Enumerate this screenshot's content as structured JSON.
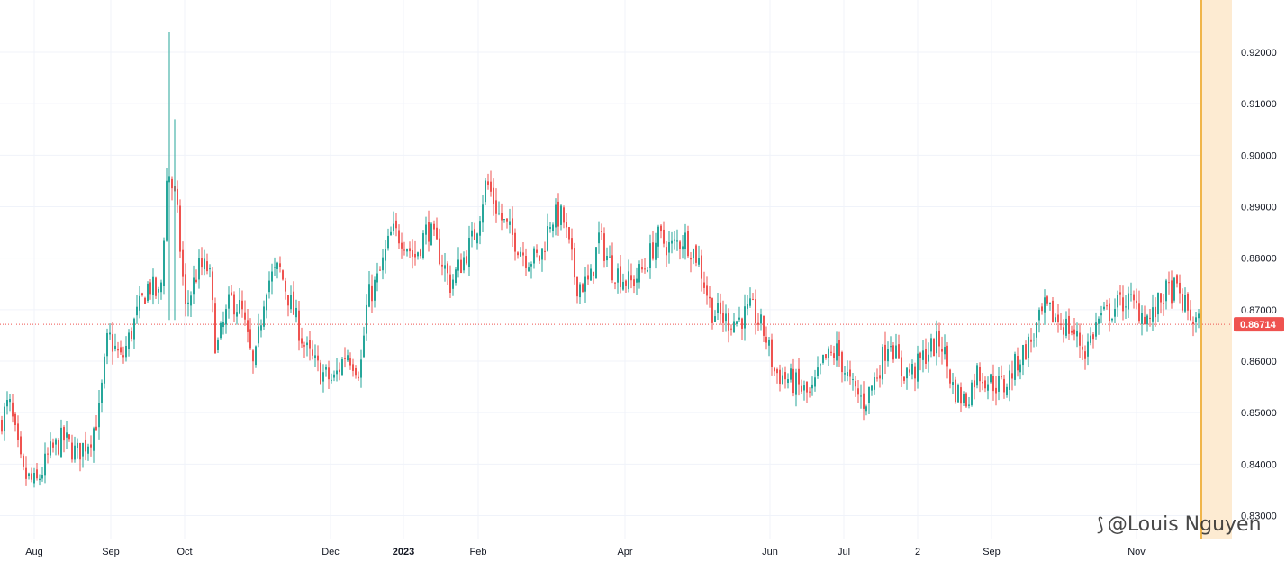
{
  "chart_data": {
    "type": "candlestick",
    "y_range": [
      0.8265,
      0.93
    ],
    "y_ticks": [
      "0.83000",
      "0.84000",
      "0.85000",
      "0.86000",
      "0.87000",
      "0.88000",
      "0.89000",
      "0.90000",
      "0.91000",
      "0.92000"
    ],
    "x_tick_labels": [
      {
        "label": "Aug",
        "bold": false
      },
      {
        "label": "Sep",
        "bold": false
      },
      {
        "label": "Oct",
        "bold": false
      },
      {
        "label": "Dec",
        "bold": false
      },
      {
        "label": "2023",
        "bold": true
      },
      {
        "label": "Feb",
        "bold": false
      },
      {
        "label": "Apr",
        "bold": false
      },
      {
        "label": "Jun",
        "bold": false
      },
      {
        "label": "Jul",
        "bold": false
      },
      {
        "label": "2",
        "bold": false
      },
      {
        "label": "Sep",
        "bold": false
      },
      {
        "label": "Nov",
        "bold": false
      }
    ],
    "last_price": 0.86714,
    "last_price_label": "0.86714",
    "close_path": [
      [
        0,
        0.848
      ],
      [
        10,
        0.852
      ],
      [
        25,
        0.838
      ],
      [
        40,
        0.836
      ],
      [
        55,
        0.842
      ],
      [
        70,
        0.845
      ],
      [
        85,
        0.842
      ],
      [
        100,
        0.845
      ],
      [
        110,
        0.85
      ],
      [
        120,
        0.865
      ],
      [
        135,
        0.86
      ],
      [
        150,
        0.868
      ],
      [
        165,
        0.875
      ],
      [
        178,
        0.872
      ],
      [
        186,
        0.898
      ],
      [
        196,
        0.89
      ],
      [
        206,
        0.87
      ],
      [
        220,
        0.878
      ],
      [
        232,
        0.878
      ],
      [
        240,
        0.862
      ],
      [
        256,
        0.872
      ],
      [
        268,
        0.87
      ],
      [
        282,
        0.858
      ],
      [
        295,
        0.875
      ],
      [
        310,
        0.878
      ],
      [
        325,
        0.87
      ],
      [
        340,
        0.862
      ],
      [
        355,
        0.858
      ],
      [
        370,
        0.856
      ],
      [
        385,
        0.862
      ],
      [
        400,
        0.858
      ],
      [
        408,
        0.872
      ],
      [
        420,
        0.876
      ],
      [
        435,
        0.885
      ],
      [
        448,
        0.884
      ],
      [
        460,
        0.88
      ],
      [
        475,
        0.886
      ],
      [
        490,
        0.88
      ],
      [
        500,
        0.875
      ],
      [
        515,
        0.88
      ],
      [
        528,
        0.885
      ],
      [
        540,
        0.895
      ],
      [
        555,
        0.888
      ],
      [
        570,
        0.884
      ],
      [
        585,
        0.88
      ],
      [
        600,
        0.88
      ],
      [
        612,
        0.888
      ],
      [
        625,
        0.888
      ],
      [
        640,
        0.875
      ],
      [
        655,
        0.875
      ],
      [
        665,
        0.884
      ],
      [
        680,
        0.878
      ],
      [
        700,
        0.875
      ],
      [
        715,
        0.878
      ],
      [
        730,
        0.884
      ],
      [
        745,
        0.882
      ],
      [
        760,
        0.884
      ],
      [
        775,
        0.88
      ],
      [
        790,
        0.87
      ],
      [
        805,
        0.868
      ],
      [
        820,
        0.868
      ],
      [
        835,
        0.87
      ],
      [
        850,
        0.865
      ],
      [
        860,
        0.858
      ],
      [
        880,
        0.856
      ],
      [
        900,
        0.853
      ],
      [
        915,
        0.86
      ],
      [
        930,
        0.862
      ],
      [
        945,
        0.855
      ],
      [
        960,
        0.852
      ],
      [
        975,
        0.858
      ],
      [
        988,
        0.865
      ],
      [
        1000,
        0.858
      ],
      [
        1015,
        0.858
      ],
      [
        1030,
        0.862
      ],
      [
        1045,
        0.864
      ],
      [
        1058,
        0.855
      ],
      [
        1072,
        0.852
      ],
      [
        1085,
        0.858
      ],
      [
        1100,
        0.856
      ],
      [
        1115,
        0.855
      ],
      [
        1130,
        0.86
      ],
      [
        1145,
        0.864
      ],
      [
        1160,
        0.87
      ],
      [
        1175,
        0.868
      ],
      [
        1190,
        0.866
      ],
      [
        1205,
        0.862
      ],
      [
        1220,
        0.868
      ],
      [
        1235,
        0.87
      ],
      [
        1250,
        0.872
      ],
      [
        1265,
        0.87
      ],
      [
        1278,
        0.868
      ],
      [
        1292,
        0.873
      ],
      [
        1305,
        0.874
      ],
      [
        1318,
        0.87
      ],
      [
        1325,
        0.868
      ],
      [
        1332,
        0.8671
      ]
    ],
    "spikes": [
      {
        "x": 188,
        "high": 0.924,
        "low": 0.868
      },
      {
        "x": 194,
        "high": 0.907,
        "low": 0.868
      }
    ]
  },
  "colors": {
    "up": "#26a69a",
    "down": "#ef5350",
    "grid": "#f0f3fa",
    "price_line": "#ef5350",
    "highlight_band": "#fdebd2",
    "highlight_line": "#f0b54a"
  },
  "watermark": {
    "icon": "TradingView-tree-icon",
    "text": "@Louis Nguyen"
  }
}
